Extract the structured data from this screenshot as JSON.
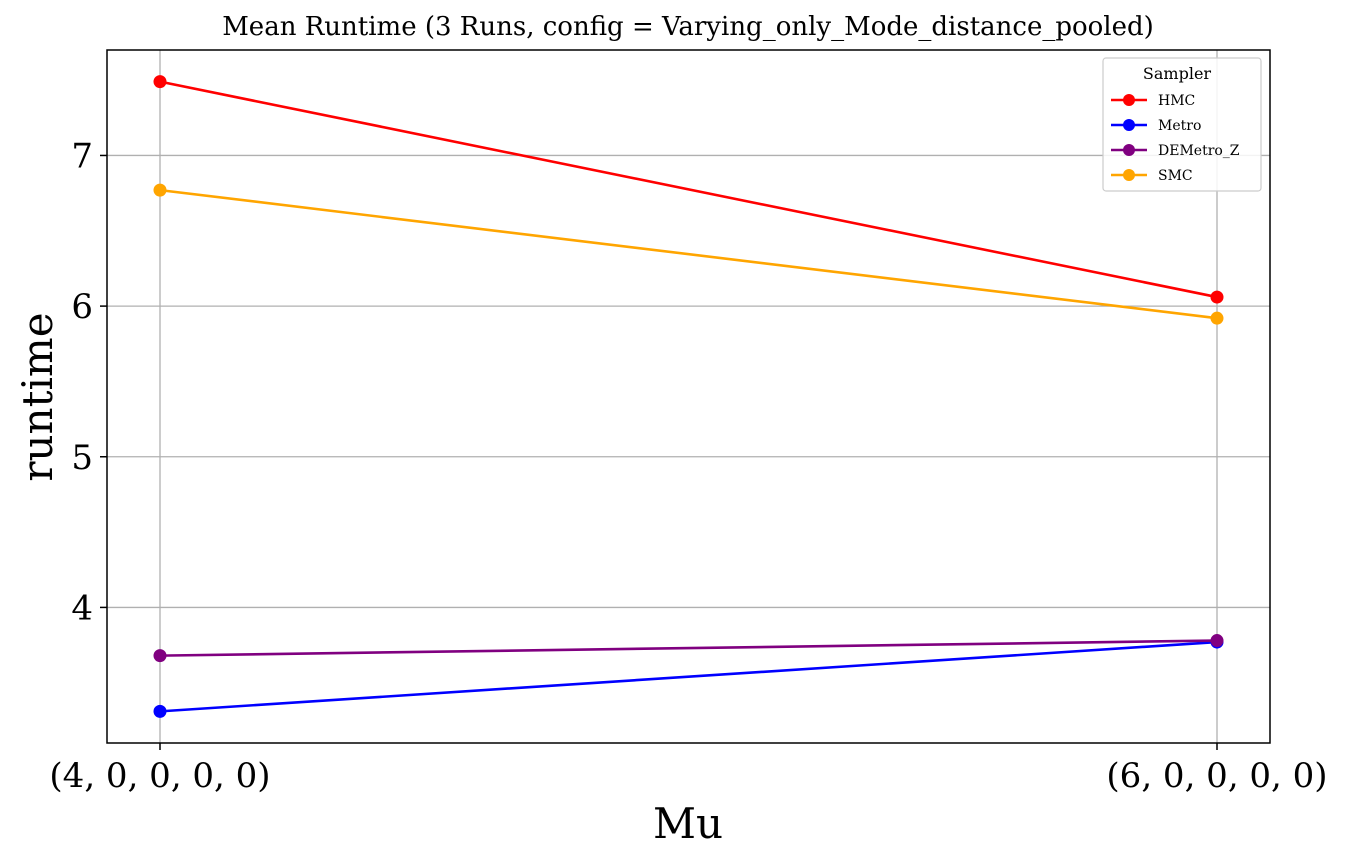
{
  "chart_data": {
    "type": "line",
    "title": "Mean Runtime (3 Runs, config = Varying_only_Mode_distance_pooled)",
    "xlabel": "Mu",
    "ylabel": "runtime",
    "categories": [
      "(4, 0, 0, 0, 0)",
      "(6, 0, 0, 0, 0)"
    ],
    "ylim": [
      3.1,
      7.7
    ],
    "yticks": [
      4,
      5,
      6,
      7
    ],
    "grid": true,
    "legend": {
      "title": "Sampler",
      "position": "top-right"
    },
    "series": [
      {
        "name": "HMC",
        "color": "#ff0000",
        "values": [
          7.49,
          6.06
        ]
      },
      {
        "name": "Metro",
        "color": "#0000ff",
        "values": [
          3.31,
          3.77
        ]
      },
      {
        "name": "DEMetro_Z",
        "color": "#800080",
        "values": [
          3.68,
          3.78
        ]
      },
      {
        "name": "SMC",
        "color": "#ffa500",
        "values": [
          6.77,
          5.92
        ]
      }
    ]
  }
}
